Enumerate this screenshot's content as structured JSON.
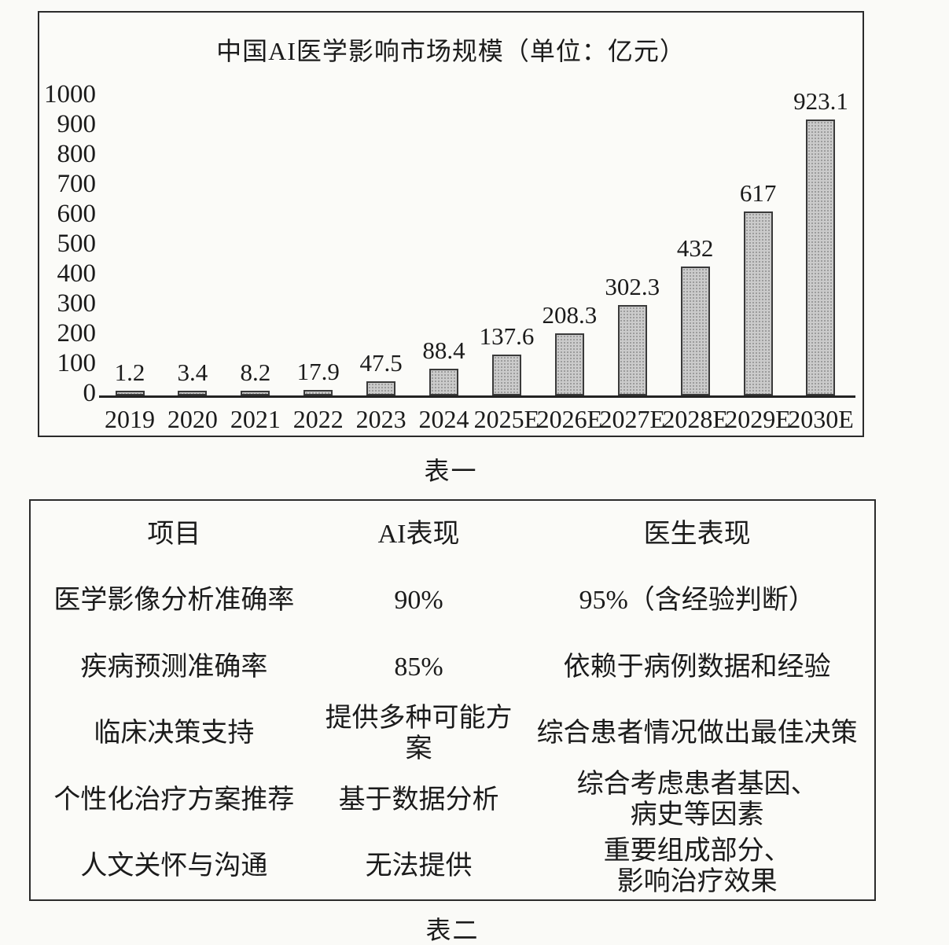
{
  "chart_data": {
    "type": "bar",
    "title": "中国AI医学影响市场规模（单位：亿元）",
    "categories": [
      "2019",
      "2020",
      "2021",
      "2022",
      "2023",
      "2024",
      "2025E",
      "2026E",
      "2027E",
      "2028E",
      "2029E",
      "2030E"
    ],
    "values": [
      1.2,
      3.4,
      8.2,
      17.9,
      47.5,
      88.4,
      137.6,
      208.3,
      302.3,
      432,
      617,
      923.1
    ],
    "xlabel": "",
    "ylabel": "",
    "ylim": [
      0,
      1000
    ],
    "y_ticks": [
      1000,
      900,
      800,
      700,
      600,
      500,
      400,
      300,
      200,
      100,
      0
    ],
    "grid": false,
    "legend": "none",
    "bar_fill_color": "#cbcbcb",
    "bar_border_color": "#3a3a3a",
    "value_labels_shown": true
  },
  "chart_caption": "表一",
  "table": {
    "headers": [
      "项目",
      "AI表现",
      "医生表现"
    ],
    "rows": [
      [
        "医学影像分析准确率",
        "90%",
        "95%（含经验判断）"
      ],
      [
        "疾病预测准确率",
        "85%",
        "依赖于病例数据和经验"
      ],
      [
        "临床决策支持",
        "提供多种可能方案",
        "综合患者情况做出最佳决策"
      ],
      [
        "个性化治疗方案推荐",
        "基于数据分析",
        "综合考虑患者基因、\n病史等因素"
      ],
      [
        "人文关怀与沟通",
        "无法提供",
        "重要组成部分、\n影响治疗效果"
      ]
    ],
    "caption": "表二"
  },
  "colors": {
    "paper_background": "#fafaf7",
    "ink": "#1b1b1b",
    "box_border": "#2b2b2b"
  }
}
